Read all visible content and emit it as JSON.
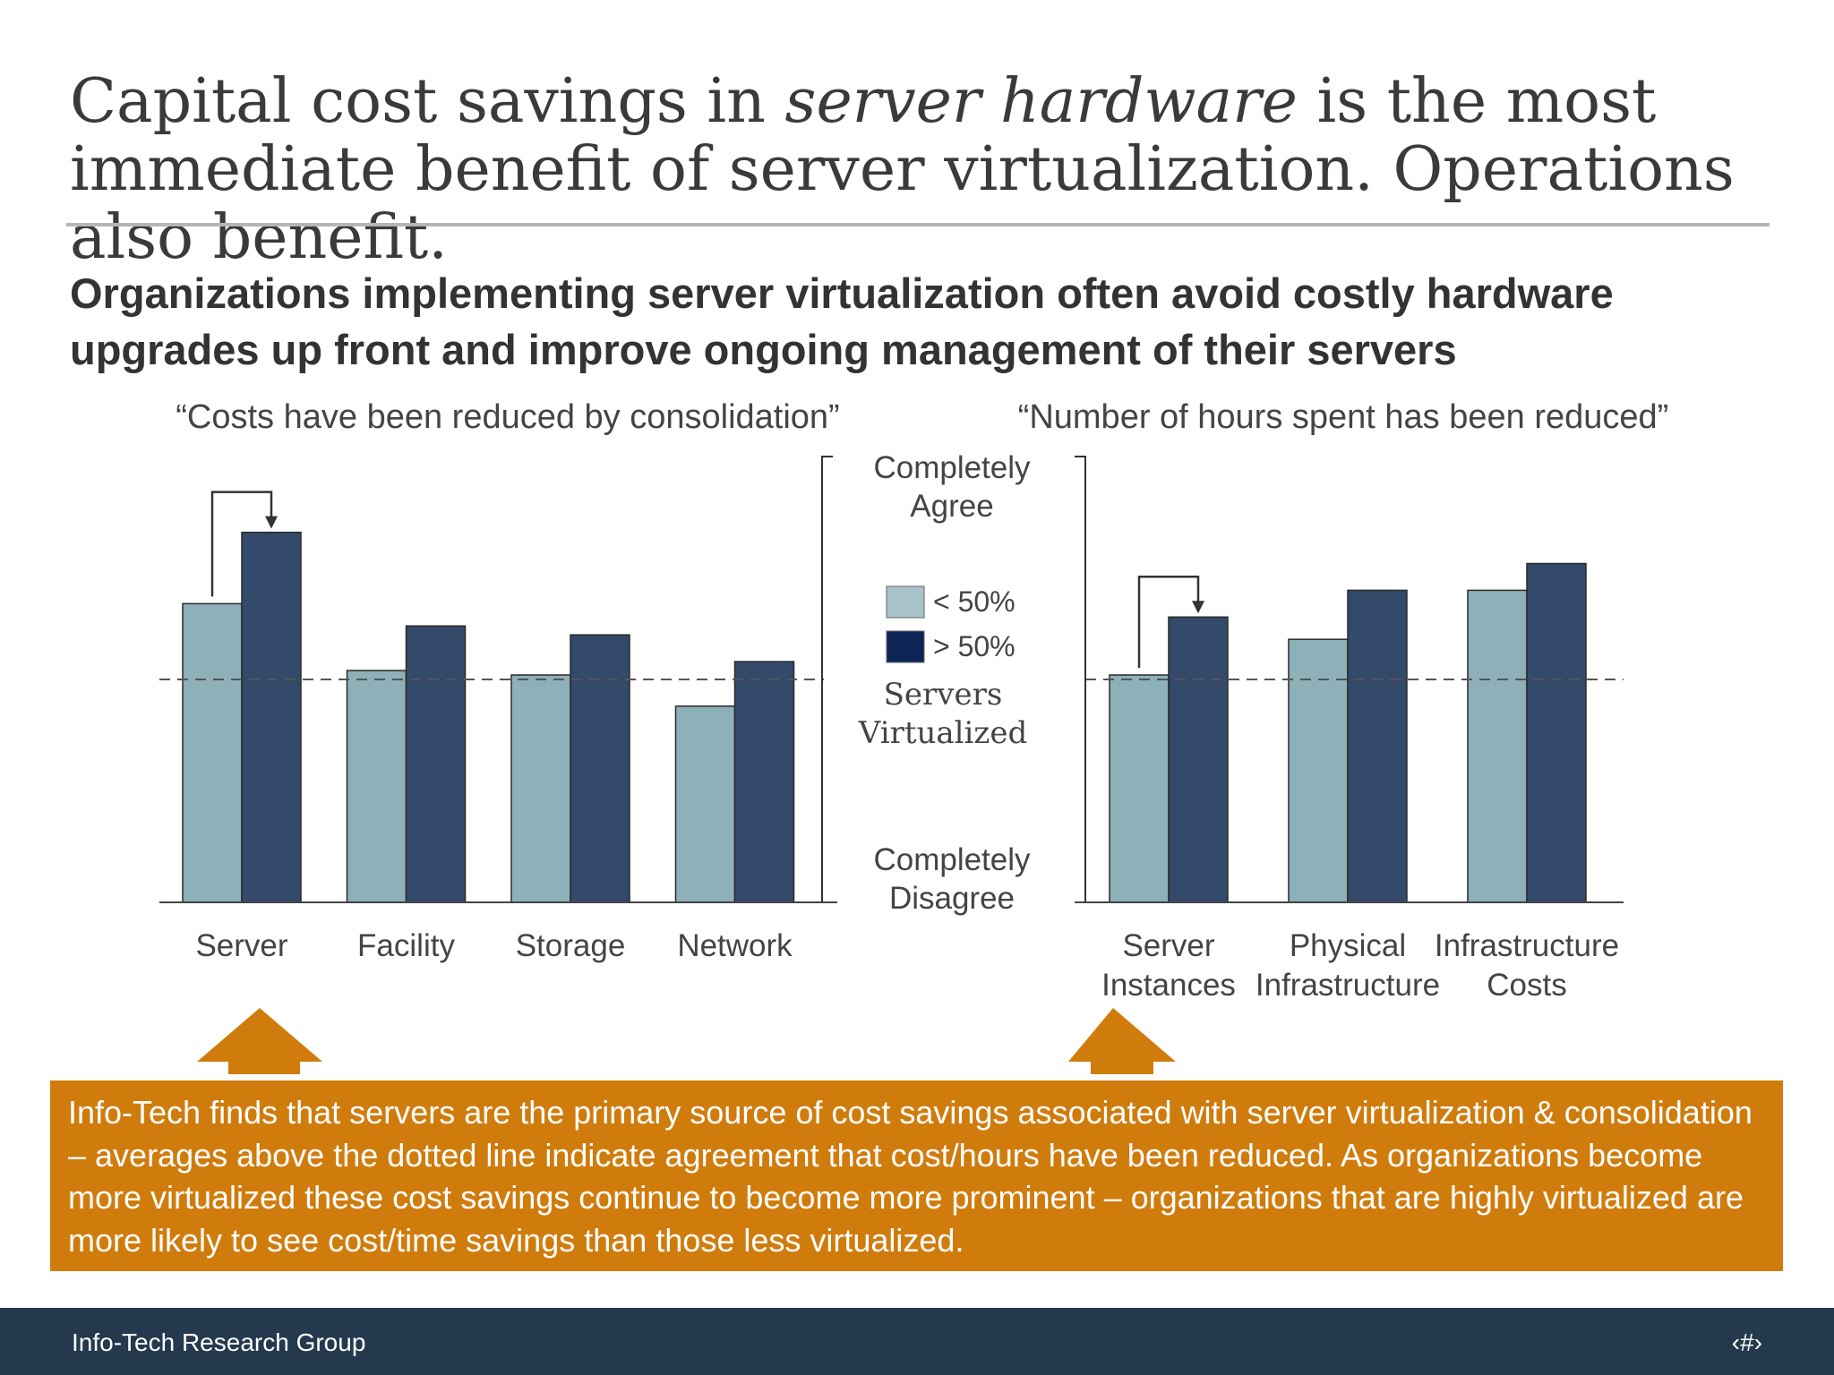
{
  "slide": {
    "title_part1": "Capital cost savings in ",
    "title_emph": "server hardware",
    "title_part2": " is the most immediate benefit of server virtualization. Operations also benefit.",
    "subtitle": "Organizations implementing server virtualization often avoid costly hardware upgrades up front and improve ongoing management of their servers",
    "callout": "Info-Tech finds that servers are the primary source of cost savings associated with server virtualization & consolidation – averages above the dotted line indicate agreement that cost/hours have been reduced. As organizations become more virtualized these cost savings continue to become more prominent – organizations that are highly virtualized are more likely to see cost/time savings than those less virtualized.",
    "footer_org": "Info-Tech Research Group",
    "footer_page": "‹#›"
  },
  "chart_data": [
    {
      "type": "bar",
      "title": "“Costs have been reduced by consolidation”",
      "categories": [
        "Server",
        "Facility",
        "Storage",
        "Network"
      ],
      "series": [
        {
          "name": "< 50%",
          "values": [
            0.67,
            0.52,
            0.51,
            0.44
          ]
        },
        {
          "name": "> 50%",
          "values": [
            0.83,
            0.62,
            0.6,
            0.54
          ]
        }
      ],
      "ylim": [
        0,
        1
      ],
      "reference_line": 0.5,
      "y_top_label": "Completely Agree",
      "y_bottom_label": "Completely Disagree"
    },
    {
      "type": "bar",
      "title": "“Number of hours spent has been reduced”",
      "categories": [
        "Server Instances",
        "Physical Infrastructure",
        "Infrastructure Costs"
      ],
      "series": [
        {
          "name": "< 50%",
          "values": [
            0.51,
            0.59,
            0.7
          ]
        },
        {
          "name": "> 50%",
          "values": [
            0.64,
            0.7,
            0.76
          ]
        }
      ],
      "ylim": [
        0,
        1
      ],
      "reference_line": 0.5,
      "y_top_label": "Completely Agree",
      "y_bottom_label": "Completely Disagree"
    }
  ],
  "legend": {
    "items": [
      {
        "label": "< 50%",
        "color": "#a9c3cb"
      },
      {
        "label": "> 50%",
        "color": "#0d2456"
      }
    ],
    "title_line1": "Servers",
    "title_line2": "Virtualized"
  },
  "y_labels": {
    "top_line1": "Completely",
    "top_line2": "Agree",
    "bottom_line1": "Completely",
    "bottom_line2": "Disagree"
  },
  "colors": {
    "bar_low": "#8eb0b8",
    "bar_high": "#344a6b",
    "accent": "#d07c0d",
    "footer": "#24394d"
  }
}
